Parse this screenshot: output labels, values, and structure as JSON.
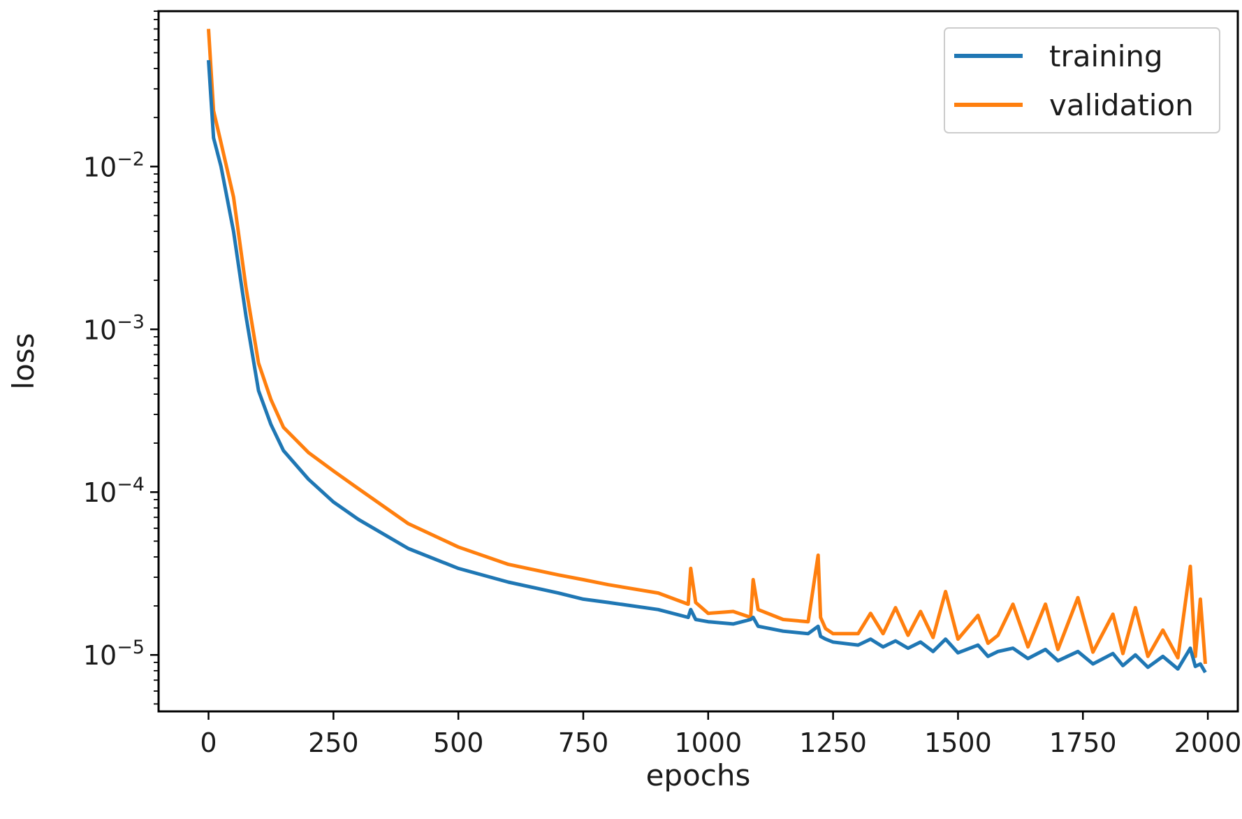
{
  "chart_data": {
    "type": "line",
    "title": "",
    "xlabel": "epochs",
    "ylabel": "loss",
    "yscale": "log",
    "xlim": [
      -100,
      2060
    ],
    "ylim": [
      4.5e-06,
      0.09
    ],
    "grid": false,
    "legend_position": "top-right",
    "x_ticks": [
      {
        "value": 0,
        "label": "0"
      },
      {
        "value": 250,
        "label": "250"
      },
      {
        "value": 500,
        "label": "500"
      },
      {
        "value": 750,
        "label": "750"
      },
      {
        "value": 1000,
        "label": "1000"
      },
      {
        "value": 1250,
        "label": "1250"
      },
      {
        "value": 1500,
        "label": "1500"
      },
      {
        "value": 1750,
        "label": "1750"
      },
      {
        "value": 2000,
        "label": "2000"
      }
    ],
    "y_ticks": [
      {
        "value": 0.01,
        "base": "10",
        "exp": "−2"
      },
      {
        "value": 0.001,
        "base": "10",
        "exp": "−3"
      },
      {
        "value": 0.0001,
        "base": "10",
        "exp": "−4"
      },
      {
        "value": 1e-05,
        "base": "10",
        "exp": "−5"
      }
    ],
    "x": [
      0,
      10,
      25,
      50,
      75,
      100,
      125,
      150,
      200,
      250,
      300,
      400,
      500,
      600,
      700,
      750,
      800,
      900,
      960,
      965,
      975,
      1000,
      1050,
      1085,
      1090,
      1100,
      1150,
      1200,
      1220,
      1225,
      1235,
      1250,
      1300,
      1325,
      1350,
      1375,
      1400,
      1425,
      1450,
      1475,
      1500,
      1540,
      1560,
      1580,
      1610,
      1640,
      1675,
      1700,
      1740,
      1770,
      1810,
      1830,
      1855,
      1880,
      1910,
      1940,
      1965,
      1975,
      1985,
      1995
    ],
    "series": [
      {
        "name": "training",
        "color": "#1f77b4",
        "values": [
          0.045,
          0.015,
          0.01,
          0.004,
          0.0012,
          0.00042,
          0.00026,
          0.00018,
          0.00012,
          8.7e-05,
          6.8e-05,
          4.5e-05,
          3.4e-05,
          2.8e-05,
          2.4e-05,
          2.2e-05,
          2.1e-05,
          1.9e-05,
          1.7e-05,
          1.9e-05,
          1.65e-05,
          1.6e-05,
          1.55e-05,
          1.65e-05,
          1.7e-05,
          1.5e-05,
          1.4e-05,
          1.35e-05,
          1.5e-05,
          1.3e-05,
          1.25e-05,
          1.2e-05,
          1.15e-05,
          1.25e-05,
          1.12e-05,
          1.22e-05,
          1.1e-05,
          1.2e-05,
          1.05e-05,
          1.25e-05,
          1.03e-05,
          1.15e-05,
          9.8e-06,
          1.05e-05,
          1.1e-05,
          9.5e-06,
          1.08e-05,
          9.2e-06,
          1.05e-05,
          8.8e-06,
          1.02e-05,
          8.6e-06,
          1e-05,
          8.4e-06,
          9.8e-06,
          8.2e-06,
          1.1e-05,
          8.5e-06,
          8.8e-06,
          7.8e-06
        ]
      },
      {
        "name": "validation",
        "color": "#ff7f0e",
        "values": [
          0.07,
          0.022,
          0.014,
          0.0065,
          0.0018,
          0.00062,
          0.00037,
          0.00025,
          0.000175,
          0.000135,
          0.000105,
          6.4e-05,
          4.6e-05,
          3.6e-05,
          3.1e-05,
          2.9e-05,
          2.7e-05,
          2.4e-05,
          2.05e-05,
          3.4e-05,
          2.1e-05,
          1.8e-05,
          1.85e-05,
          1.7e-05,
          2.9e-05,
          1.9e-05,
          1.65e-05,
          1.6e-05,
          4.1e-05,
          1.7e-05,
          1.45e-05,
          1.35e-05,
          1.35e-05,
          1.8e-05,
          1.35e-05,
          1.95e-05,
          1.32e-05,
          1.85e-05,
          1.28e-05,
          2.45e-05,
          1.25e-05,
          1.75e-05,
          1.18e-05,
          1.32e-05,
          2.05e-05,
          1.12e-05,
          2.05e-05,
          1.08e-05,
          2.25e-05,
          1.04e-05,
          1.78e-05,
          1.02e-05,
          1.95e-05,
          9.8e-06,
          1.42e-05,
          9.6e-06,
          3.5e-05,
          9.8e-06,
          2.2e-05,
          8.8e-06
        ]
      }
    ]
  }
}
